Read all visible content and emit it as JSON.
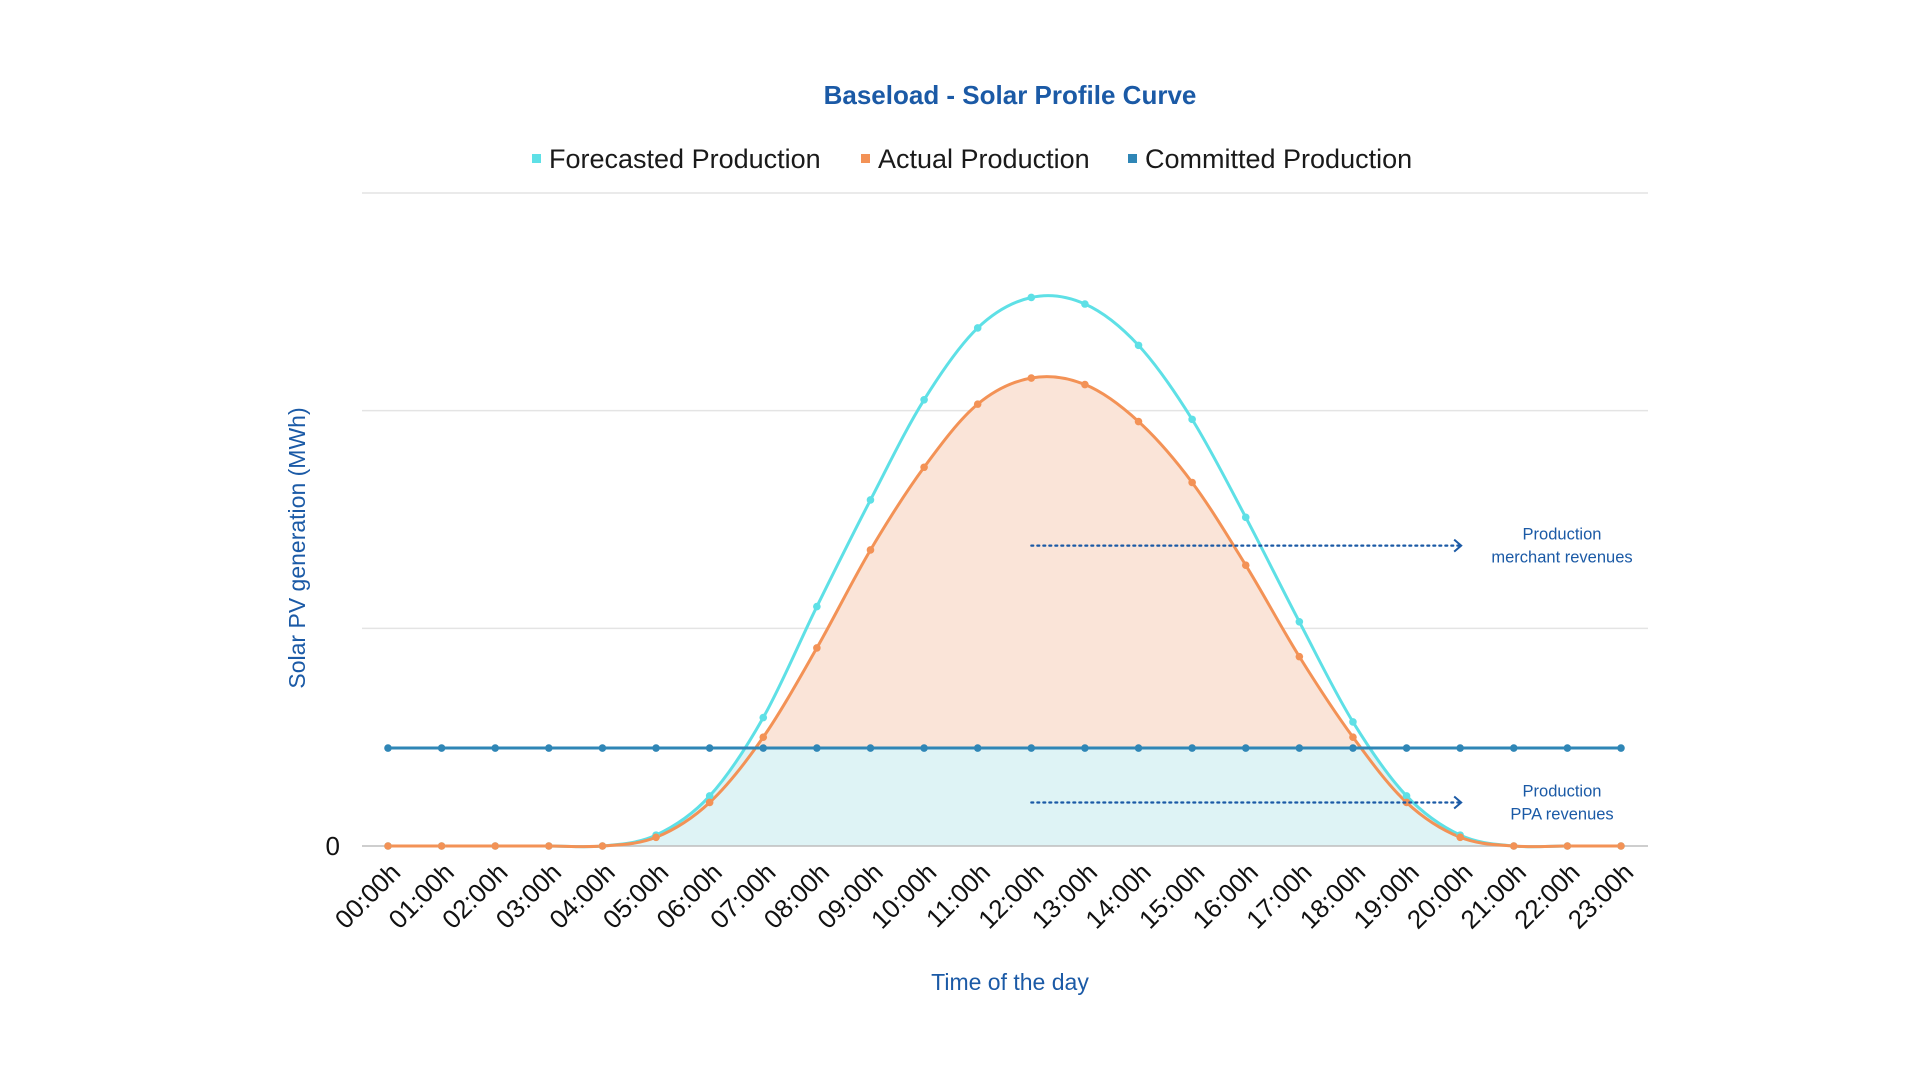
{
  "chart_data": {
    "type": "line",
    "title": "Baseload - Solar Profile Curve",
    "xlabel": "Time of the day",
    "ylabel": "Solar PV generation (MWh)",
    "ytick_labels": [
      "0"
    ],
    "ylim": [
      0,
      3
    ],
    "categories": [
      "00:00h",
      "01:00h",
      "02:00h",
      "03:00h",
      "04:00h",
      "05:00h",
      "06:00h",
      "07:00h",
      "08:00h",
      "09:00h",
      "10:00h",
      "11:00h",
      "12:00h",
      "13:00h",
      "14:00h",
      "15:00h",
      "16:00h",
      "17:00h",
      "18:00h",
      "19:00h",
      "20:00h",
      "21:00h",
      "22:00h",
      "23:00h"
    ],
    "series": [
      {
        "name": "Forecasted Production",
        "color": "#5ee0e6",
        "values": [
          0,
          0,
          0,
          0,
          0,
          0.05,
          0.23,
          0.59,
          1.1,
          1.59,
          2.05,
          2.38,
          2.52,
          2.49,
          2.3,
          1.96,
          1.51,
          1.03,
          0.57,
          0.23,
          0.05,
          0,
          0,
          0
        ]
      },
      {
        "name": "Actual Production",
        "color": "#f39256",
        "values": [
          0,
          0,
          0,
          0,
          0,
          0.04,
          0.2,
          0.5,
          0.91,
          1.36,
          1.74,
          2.03,
          2.15,
          2.12,
          1.95,
          1.67,
          1.29,
          0.87,
          0.5,
          0.2,
          0.04,
          0,
          0,
          0
        ]
      },
      {
        "name": "Committed Production",
        "color": "#2f86b6",
        "values": [
          0.45,
          0.45,
          0.45,
          0.45,
          0.45,
          0.45,
          0.45,
          0.45,
          0.45,
          0.45,
          0.45,
          0.45,
          0.45,
          0.45,
          0.45,
          0.45,
          0.45,
          0.45,
          0.45,
          0.45,
          0.45,
          0.45,
          0.45,
          0.45
        ]
      }
    ],
    "annotations": [
      {
        "id": "merchant",
        "lines": [
          "Production",
          "merchant revenues"
        ],
        "y": 1.38,
        "x_from": 12,
        "x_to": 20
      },
      {
        "id": "ppa",
        "lines": [
          "Production",
          "PPA revenues"
        ],
        "y": 0.2,
        "x_from": 12,
        "x_to": 20
      }
    ],
    "fill_colors": {
      "merchant_area": "#fae4d8",
      "ppa_area": "#def3f5"
    },
    "grid": true,
    "legend_position": "top-center",
    "text_color": "#1b5aa6"
  }
}
